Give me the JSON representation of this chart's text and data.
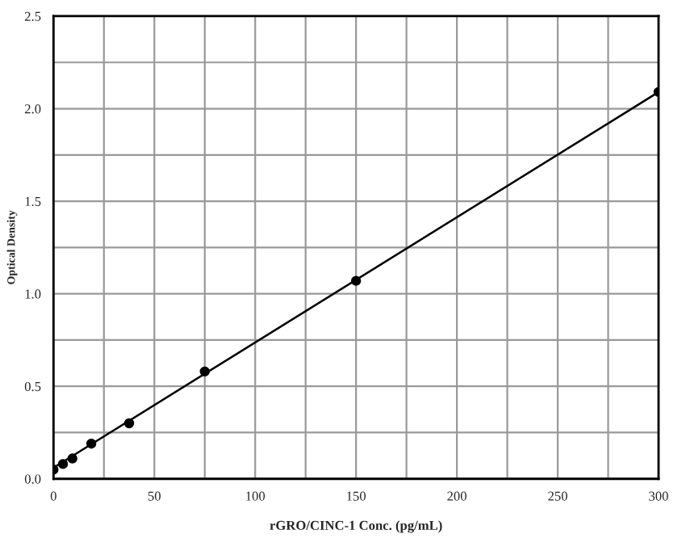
{
  "chart_data": {
    "type": "scatter",
    "xlabel": "rGRO/CINC-1 Conc. (pg/mL)",
    "ylabel": "Optical Density",
    "xlim": [
      0,
      300
    ],
    "ylim": [
      0,
      2.5
    ],
    "xticks": [
      0,
      {
        "value": 25,
        "label": null
      },
      50,
      {
        "value": 75,
        "label": null
      },
      100,
      {
        "value": 125,
        "label": null
      },
      150,
      {
        "value": 175,
        "label": null
      },
      200,
      {
        "value": 225,
        "label": null
      },
      250,
      {
        "value": 275,
        "label": null
      },
      300
    ],
    "yticks": [
      "0.0",
      {
        "value": 0.25,
        "label": null
      },
      {
        "value": 0.5,
        "label": "0.5"
      },
      {
        "value": 0.75,
        "label": null
      },
      {
        "value": 1.0,
        "label": "1.0"
      },
      {
        "value": 1.25,
        "label": null
      },
      {
        "value": 1.5,
        "label": "1.5"
      },
      {
        "value": 1.75,
        "label": null
      },
      {
        "value": 2.0,
        "label": "2.0"
      },
      {
        "value": 2.25,
        "label": null
      },
      {
        "value": 2.5,
        "label": "2.5"
      }
    ],
    "grid": true,
    "marker": "circle",
    "series": [
      {
        "color": "#000000",
        "x": [
          0,
          4.69,
          9.38,
          18.75,
          37.5,
          75,
          150,
          300
        ],
        "values": [
          0.05,
          0.08,
          0.11,
          0.19,
          0.3,
          0.58,
          1.07,
          2.09
        ]
      },
      {
        "type": "line",
        "marker": "none",
        "color": "#000000",
        "x": [
          0,
          300
        ],
        "values": [
          0.06,
          2.09
        ]
      }
    ]
  }
}
